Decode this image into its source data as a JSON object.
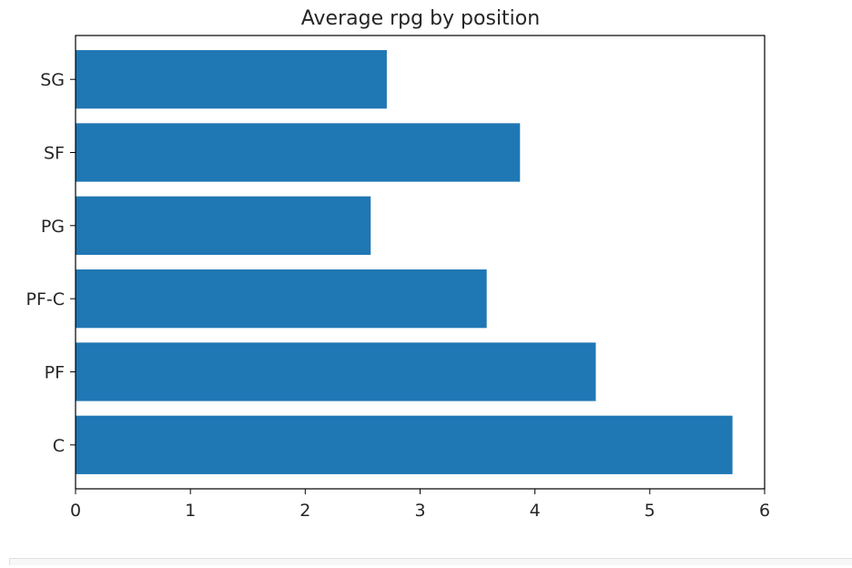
{
  "chart_data": {
    "type": "bar",
    "orientation": "horizontal",
    "title": "Average rpg by position",
    "xlabel": "",
    "ylabel": "",
    "categories": [
      "C",
      "PF",
      "PF-C",
      "PG",
      "SF",
      "SG"
    ],
    "values": [
      5.72,
      4.53,
      3.58,
      2.57,
      3.87,
      2.71
    ],
    "xlim": [
      0,
      6
    ],
    "xticks": [
      "0",
      "1",
      "2",
      "3",
      "4",
      "5",
      "6"
    ],
    "bar_color": "#1f77b4",
    "grid": false
  }
}
